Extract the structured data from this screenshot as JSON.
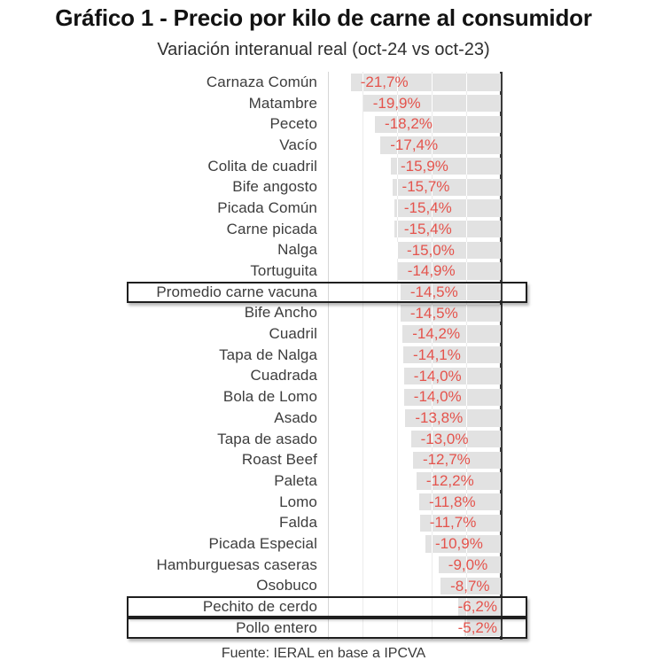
{
  "colors": {
    "value_text": "#e4534c",
    "bar_fill": "#e2e2e2",
    "category_text": "#3d3d3d",
    "title_text": "#121212",
    "subtitle_text": "#2f2f2f",
    "source_text": "#3a3a3a",
    "axis_line": "#3a3a3a",
    "gridline": "#ececec",
    "boundary_line": "#d6d6d6",
    "box_border": "#1f1f1f"
  },
  "chart_data": {
    "type": "bar",
    "orientation": "horizontal",
    "title": "Gráfico 1 - Precio por kilo de carne al consumidor",
    "subtitle": "Variación interanual real (oct-24 vs oct-23)",
    "source": "Fuente: IERAL en base a IPCVA",
    "xlabel": "",
    "ylabel": "",
    "xlim": [
      -25,
      0
    ],
    "gridline_step": 5,
    "grid": true,
    "legend": "none",
    "value_suffix": "%",
    "decimal_separator": ",",
    "categories": [
      "Carnaza Común",
      "Matambre",
      "Peceto",
      "Vacío",
      "Colita de cuadril",
      "Bife angosto",
      "Picada Común",
      "Carne picada",
      "Nalga",
      "Tortuguita",
      "Promedio carne vacuna",
      "Bife Ancho",
      "Cuadril",
      "Tapa de Nalga",
      "Cuadrada",
      "Bola de Lomo",
      "Asado",
      "Tapa de asado",
      "Roast Beef",
      "Paleta",
      "Lomo",
      "Falda",
      "Picada Especial",
      "Hamburguesas caseras",
      "Osobuco",
      "Pechito de cerdo",
      "Pollo entero"
    ],
    "values": [
      -21.7,
      -19.9,
      -18.2,
      -17.4,
      -15.9,
      -15.7,
      -15.4,
      -15.4,
      -15.0,
      -14.9,
      -14.5,
      -14.5,
      -14.2,
      -14.1,
      -14.0,
      -14.0,
      -13.8,
      -13.0,
      -12.7,
      -12.2,
      -11.8,
      -11.7,
      -10.9,
      -9.0,
      -8.7,
      -6.2,
      -5.2
    ],
    "value_labels": [
      "-21,7%",
      "-19,9%",
      "-18,2%",
      "-17,4%",
      "-15,9%",
      "-15,7%",
      "-15,4%",
      "-15,4%",
      "-15,0%",
      "-14,9%",
      "-14,5%",
      "-14,5%",
      "-14,2%",
      "-14,1%",
      "-14,0%",
      "-14,0%",
      "-13,8%",
      "-13,0%",
      "-12,7%",
      "-12,2%",
      "-11,8%",
      "-11,7%",
      "-10,9%",
      "-9,0%",
      "-8,7%",
      "-6,2%",
      "-5,2%"
    ],
    "highlighted_categories": [
      "Promedio carne vacuna",
      "Pechito de cerdo",
      "Pollo entero"
    ]
  }
}
